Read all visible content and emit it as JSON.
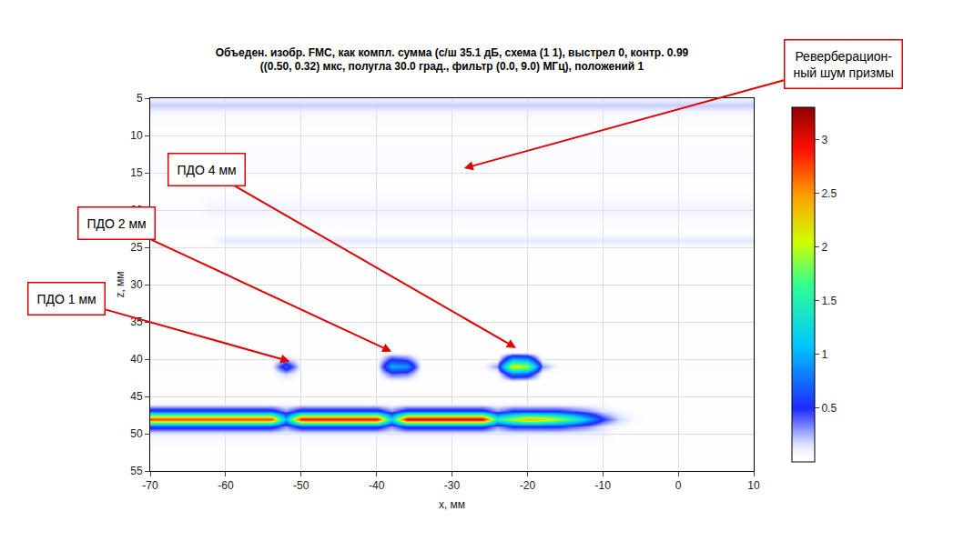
{
  "chart_data": {
    "type": "heatmap",
    "title": "Объеден. изобр. FMC, как компл. сумма (с/ш 35.1 дБ, схема (1 1), выстрел 0, контр. 0.99\n((0.50, 0.32) мкс, полугла 30.0 град., фильтр (0.0, 9.0) МГц), положений 1",
    "x_label": "x, мм",
    "y_label": "z, мм",
    "xlim": [
      -70,
      10
    ],
    "xticks": [
      -70,
      -60,
      -50,
      -40,
      -30,
      -20,
      -10,
      0,
      10
    ],
    "ylim": [
      55,
      5
    ],
    "yticks": [
      5,
      10,
      15,
      20,
      25,
      30,
      35,
      40,
      45,
      50,
      55
    ],
    "grid": true,
    "colorbar_range": [
      0,
      3.3
    ],
    "colorbar_ticks": [
      0.5,
      1,
      1.5,
      2,
      2.5,
      3
    ],
    "x": [
      -70,
      -68,
      -66,
      -64,
      -62,
      -60,
      -58,
      -56,
      -54,
      -52,
      -50,
      -48,
      -46,
      -44,
      -42,
      -40,
      -38,
      -36,
      -34,
      -32,
      -30,
      -28,
      -26,
      -24,
      -22,
      -20,
      -18,
      -16,
      -14,
      -12,
      -10,
      -8,
      -6,
      -4,
      -2,
      0,
      2,
      4,
      6,
      8,
      10
    ],
    "y": [
      5,
      6,
      7,
      9,
      12,
      14,
      17,
      20,
      21,
      23,
      24,
      25,
      28,
      32,
      36,
      39,
      40,
      41,
      42,
      43,
      45,
      46,
      47,
      48,
      49,
      50,
      52,
      55
    ],
    "cells": [
      [
        0.1,
        0.1,
        0.1,
        0.1,
        0.1,
        0.1,
        0.1,
        0.1,
        0.1,
        0.1,
        0.1,
        0.1,
        0.1,
        0.1,
        0.1,
        0.1,
        0.1,
        0.1,
        0.1,
        0.1,
        0.1,
        0.1,
        0.1,
        0.1,
        0.1,
        0.1,
        0.1,
        0.1,
        0.1,
        0.1,
        0.1,
        0.1,
        0.1,
        0.1,
        0.1,
        0.1,
        0.1,
        0.1,
        0.1,
        0.1,
        0.1
      ],
      [
        0.2,
        0.2,
        0.2,
        0.2,
        0.2,
        0.2,
        0.2,
        0.2,
        0.2,
        0.2,
        0.2,
        0.2,
        0.2,
        0.2,
        0.2,
        0.2,
        0.2,
        0.2,
        0.2,
        0.2,
        0.2,
        0.2,
        0.2,
        0.2,
        0.2,
        0.2,
        0.2,
        0.2,
        0.2,
        0.2,
        0.2,
        0.2,
        0.2,
        0.2,
        0.2,
        0.2,
        0.2,
        0.2,
        0.2,
        0.2,
        0.2
      ],
      [
        0.08,
        0.08,
        0.08,
        0.08,
        0.08,
        0.08,
        0.08,
        0.08,
        0.08,
        0.08,
        0.08,
        0.08,
        0.08,
        0.08,
        0.08,
        0.08,
        0.08,
        0.08,
        0.08,
        0.08,
        0.08,
        0.08,
        0.08,
        0.08,
        0.08,
        0.08,
        0.08,
        0.08,
        0.08,
        0.08,
        0.08,
        0.08,
        0.08,
        0.08,
        0.08,
        0.08,
        0.08,
        0.08,
        0.08,
        0.08,
        0.08
      ],
      [
        0.03,
        0.03,
        0.03,
        0.03,
        0.03,
        0.03,
        0.03,
        0.03,
        0.03,
        0.03,
        0.03,
        0.03,
        0.03,
        0.03,
        0.03,
        0.03,
        0.03,
        0.03,
        0.03,
        0.03,
        0.03,
        0.03,
        0.03,
        0.03,
        0.03,
        0.03,
        0.03,
        0.03,
        0.03,
        0.03,
        0.03,
        0.03,
        0.03,
        0.03,
        0.03,
        0.03,
        0.03,
        0.03,
        0.03,
        0.03,
        0.03
      ],
      [
        0.05,
        0.05,
        0.05,
        0.05,
        0.05,
        0.05,
        0.05,
        0.05,
        0.05,
        0.05,
        0.05,
        0.05,
        0.05,
        0.05,
        0.05,
        0.05,
        0.05,
        0.05,
        0.05,
        0.05,
        0.05,
        0.05,
        0.05,
        0.05,
        0.05,
        0.05,
        0.05,
        0.05,
        0.05,
        0.05,
        0.05,
        0.05,
        0.05,
        0.05,
        0.05,
        0.05,
        0.05,
        0.05,
        0.05,
        0.05,
        0.05
      ],
      [
        0.06,
        0.06,
        0.06,
        0.06,
        0.06,
        0.06,
        0.06,
        0.06,
        0.06,
        0.06,
        0.06,
        0.06,
        0.06,
        0.06,
        0.06,
        0.06,
        0.06,
        0.06,
        0.06,
        0.06,
        0.06,
        0.06,
        0.06,
        0.06,
        0.06,
        0.06,
        0.06,
        0.06,
        0.06,
        0.06,
        0.06,
        0.06,
        0.06,
        0.06,
        0.06,
        0.06,
        0.06,
        0.06,
        0.06,
        0.06,
        0.06
      ],
      [
        0.03,
        0.03,
        0.03,
        0.03,
        0.03,
        0.03,
        0.03,
        0.03,
        0.03,
        0.03,
        0.03,
        0.03,
        0.03,
        0.03,
        0.03,
        0.03,
        0.03,
        0.03,
        0.03,
        0.03,
        0.03,
        0.03,
        0.03,
        0.03,
        0.03,
        0.03,
        0.03,
        0.03,
        0.03,
        0.03,
        0.03,
        0.03,
        0.03,
        0.03,
        0.03,
        0.03,
        0.03,
        0.03,
        0.03,
        0.03,
        0.03
      ],
      [
        0.04,
        0.04,
        0.04,
        0.04,
        0.1,
        0.1,
        0.1,
        0.1,
        0.1,
        0.1,
        0.1,
        0.1,
        0.1,
        0.1,
        0.1,
        0.1,
        0.1,
        0.1,
        0.1,
        0.1,
        0.1,
        0.1,
        0.1,
        0.1,
        0.1,
        0.1,
        0.1,
        0.1,
        0.1,
        0.1,
        0.1,
        0.1,
        0.1,
        0.1,
        0.1,
        0.1,
        0.1,
        0.1,
        0.1,
        0.1,
        0.1
      ],
      [
        0.07,
        0.07,
        0.07,
        0.07,
        0.07,
        0.07,
        0.07,
        0.07,
        0.07,
        0.07,
        0.07,
        0.07,
        0.07,
        0.07,
        0.07,
        0.07,
        0.07,
        0.07,
        0.07,
        0.07,
        0.07,
        0.07,
        0.07,
        0.07,
        0.07,
        0.07,
        0.07,
        0.07,
        0.07,
        0.07,
        0.07,
        0.07,
        0.07,
        0.07,
        0.07,
        0.07,
        0.07,
        0.07,
        0.07,
        0.07,
        0.07
      ],
      [
        0.03,
        0.03,
        0.03,
        0.03,
        0.03,
        0.03,
        0.03,
        0.03,
        0.03,
        0.03,
        0.03,
        0.03,
        0.03,
        0.03,
        0.03,
        0.03,
        0.03,
        0.03,
        0.03,
        0.03,
        0.03,
        0.03,
        0.03,
        0.03,
        0.03,
        0.03,
        0.03,
        0.03,
        0.03,
        0.03,
        0.03,
        0.03,
        0.03,
        0.03,
        0.03,
        0.03,
        0.03,
        0.03,
        0.03,
        0.03,
        0.03
      ],
      [
        0.04,
        0.04,
        0.04,
        0.04,
        0.04,
        0.14,
        0.14,
        0.14,
        0.14,
        0.14,
        0.14,
        0.14,
        0.14,
        0.14,
        0.14,
        0.14,
        0.14,
        0.14,
        0.14,
        0.14,
        0.14,
        0.14,
        0.14,
        0.14,
        0.14,
        0.14,
        0.14,
        0.14,
        0.14,
        0.14,
        0.14,
        0.14,
        0.14,
        0.14,
        0.14,
        0.14,
        0.14,
        0.14,
        0.14,
        0.14,
        0.14
      ],
      [
        0.05,
        0.05,
        0.05,
        0.05,
        0.05,
        0.05,
        0.05,
        0.05,
        0.05,
        0.05,
        0.05,
        0.05,
        0.05,
        0.05,
        0.05,
        0.05,
        0.05,
        0.05,
        0.05,
        0.05,
        0.05,
        0.05,
        0.05,
        0.05,
        0.05,
        0.05,
        0.05,
        0.05,
        0.05,
        0.05,
        0.05,
        0.05,
        0.05,
        0.05,
        0.05,
        0.05,
        0.05,
        0.05,
        0.05,
        0.05,
        0.05
      ],
      [
        0.02,
        0.02,
        0.02,
        0.02,
        0.02,
        0.02,
        0.02,
        0.02,
        0.02,
        0.02,
        0.02,
        0.02,
        0.02,
        0.02,
        0.02,
        0.02,
        0.02,
        0.02,
        0.02,
        0.02,
        0.02,
        0.02,
        0.02,
        0.02,
        0.02,
        0.02,
        0.02,
        0.02,
        0.02,
        0.02,
        0.02,
        0.02,
        0.02,
        0.02,
        0.02,
        0.02,
        0.02,
        0.02,
        0.02,
        0.02,
        0.02
      ],
      [
        0.02,
        0.02,
        0.02,
        0.02,
        0.02,
        0.02,
        0.02,
        0.02,
        0.02,
        0.02,
        0.02,
        0.02,
        0.02,
        0.02,
        0.02,
        0.02,
        0.02,
        0.02,
        0.02,
        0.02,
        0.02,
        0.02,
        0.02,
        0.02,
        0.02,
        0.02,
        0.02,
        0.02,
        0.02,
        0.02,
        0.02,
        0.02,
        0.02,
        0.02,
        0.02,
        0.02,
        0.02,
        0.02,
        0.02,
        0.02,
        0.02
      ],
      [
        0.02,
        0.02,
        0.02,
        0.02,
        0.02,
        0.02,
        0.02,
        0.02,
        0.02,
        0.02,
        0.02,
        0.02,
        0.02,
        0.02,
        0.02,
        0.02,
        0.02,
        0.02,
        0.02,
        0.02,
        0.02,
        0.02,
        0.02,
        0.02,
        0.02,
        0.02,
        0.02,
        0.02,
        0.02,
        0.02,
        0.02,
        0.02,
        0.02,
        0.02,
        0.02,
        0.02,
        0.02,
        0.02,
        0.02,
        0.02,
        0.02
      ],
      [
        0.02,
        0.02,
        0.02,
        0.02,
        0.02,
        0.02,
        0.02,
        0.02,
        0.02,
        0.02,
        0.02,
        0.02,
        0.02,
        0.02,
        0.02,
        0.02,
        0.02,
        0.02,
        0.02,
        0.02,
        0.02,
        0.02,
        0.02,
        0.02,
        0.02,
        0.02,
        0.02,
        0.02,
        0.02,
        0.02,
        0.02,
        0.02,
        0.02,
        0.02,
        0.02,
        0.02,
        0.02,
        0.02,
        0.02,
        0.02,
        0.02
      ],
      [
        0.03,
        0.03,
        0.03,
        0.03,
        0.03,
        0.03,
        0.03,
        0.03,
        0.03,
        0.2,
        0.03,
        0.03,
        0.03,
        0.03,
        0.03,
        0.03,
        0.5,
        0.4,
        0.03,
        0.03,
        0.03,
        0.03,
        0.03,
        0.03,
        1.0,
        0.9,
        0.03,
        0.03,
        0.03,
        0.03,
        0.03,
        0.03,
        0.03,
        0.03,
        0.03,
        0.03,
        0.03,
        0.03,
        0.03,
        0.03,
        0.03
      ],
      [
        0.06,
        0.06,
        0.06,
        0.06,
        0.06,
        0.06,
        0.06,
        0.06,
        0.06,
        0.7,
        0.06,
        0.06,
        0.06,
        0.06,
        0.06,
        0.06,
        1.0,
        0.9,
        0.06,
        0.06,
        0.06,
        0.06,
        0.06,
        0.3,
        2.2,
        2.0,
        0.3,
        0.06,
        0.06,
        0.06,
        0.06,
        0.06,
        0.06,
        0.06,
        0.06,
        0.06,
        0.06,
        0.06,
        0.06,
        0.06,
        0.06
      ],
      [
        0.03,
        0.03,
        0.03,
        0.03,
        0.03,
        0.03,
        0.03,
        0.03,
        0.03,
        0.2,
        0.03,
        0.03,
        0.03,
        0.03,
        0.03,
        0.03,
        0.4,
        0.35,
        0.03,
        0.03,
        0.03,
        0.03,
        0.03,
        0.03,
        0.8,
        0.7,
        0.03,
        0.03,
        0.03,
        0.03,
        0.03,
        0.03,
        0.03,
        0.03,
        0.03,
        0.03,
        0.03,
        0.03,
        0.03,
        0.03,
        0.03
      ],
      [
        0.03,
        0.03,
        0.03,
        0.03,
        0.03,
        0.03,
        0.03,
        0.03,
        0.03,
        0.03,
        0.03,
        0.03,
        0.03,
        0.03,
        0.03,
        0.03,
        0.03,
        0.03,
        0.03,
        0.03,
        0.03,
        0.03,
        0.03,
        0.03,
        0.03,
        0.03,
        0.03,
        0.03,
        0.03,
        0.03,
        0.03,
        0.03,
        0.03,
        0.03,
        0.03,
        0.03,
        0.03,
        0.03,
        0.03,
        0.03,
        0.03
      ],
      [
        0.03,
        0.03,
        0.03,
        0.03,
        0.03,
        0.03,
        0.03,
        0.03,
        0.03,
        0.03,
        0.03,
        0.03,
        0.03,
        0.03,
        0.03,
        0.03,
        0.03,
        0.03,
        0.03,
        0.03,
        0.03,
        0.03,
        0.03,
        0.03,
        0.03,
        0.03,
        0.03,
        0.03,
        0.03,
        0.03,
        0.03,
        0.03,
        0.03,
        0.03,
        0.03,
        0.03,
        0.03,
        0.03,
        0.03,
        0.03,
        0.03
      ],
      [
        0.06,
        0.06,
        0.06,
        0.06,
        0.06,
        0.06,
        0.06,
        0.06,
        0.06,
        0.06,
        0.06,
        0.06,
        0.06,
        0.06,
        0.06,
        0.06,
        0.06,
        0.06,
        0.06,
        0.06,
        0.06,
        0.06,
        0.06,
        0.06,
        0.06,
        0.06,
        0.06,
        0.06,
        0.06,
        0.06,
        0.06,
        0.02,
        0.02,
        0.02,
        0.02,
        0.02,
        0.02,
        0.02,
        0.02,
        0.02,
        0.02
      ],
      [
        0.6,
        0.6,
        0.6,
        0.6,
        0.6,
        0.6,
        0.6,
        0.6,
        0.6,
        0.3,
        0.6,
        0.6,
        0.6,
        0.6,
        0.6,
        0.6,
        0.3,
        0.6,
        0.6,
        0.6,
        0.6,
        0.6,
        0.6,
        0.3,
        0.5,
        0.5,
        0.5,
        0.5,
        0.4,
        0.3,
        0.15,
        0.08,
        0.04,
        0.02,
        0.02,
        0.02,
        0.02,
        0.02,
        0.02,
        0.02,
        0.02
      ],
      [
        2.8,
        2.8,
        2.8,
        2.8,
        2.8,
        2.8,
        2.8,
        2.8,
        2.8,
        1.0,
        3.0,
        3.0,
        3.0,
        3.0,
        3.0,
        3.0,
        1.2,
        3.1,
        3.1,
        3.1,
        3.1,
        3.1,
        3.1,
        1.5,
        2.0,
        2.4,
        2.3,
        2.0,
        1.6,
        1.0,
        0.5,
        0.2,
        0.08,
        0.03,
        0.03,
        0.03,
        0.03,
        0.03,
        0.03,
        0.03,
        0.03
      ],
      [
        0.6,
        0.6,
        0.6,
        0.6,
        0.6,
        0.6,
        0.6,
        0.6,
        0.6,
        0.3,
        0.6,
        0.6,
        0.6,
        0.6,
        0.6,
        0.6,
        0.3,
        0.6,
        0.6,
        0.6,
        0.6,
        0.6,
        0.6,
        0.3,
        0.5,
        0.5,
        0.5,
        0.5,
        0.4,
        0.3,
        0.15,
        0.08,
        0.04,
        0.02,
        0.02,
        0.02,
        0.02,
        0.02,
        0.02,
        0.02,
        0.02
      ],
      [
        0.1,
        0.1,
        0.1,
        0.1,
        0.1,
        0.1,
        0.1,
        0.1,
        0.1,
        0.1,
        0.1,
        0.1,
        0.1,
        0.1,
        0.1,
        0.1,
        0.1,
        0.1,
        0.1,
        0.1,
        0.1,
        0.1,
        0.1,
        0.1,
        0.1,
        0.1,
        0.1,
        0.1,
        0.1,
        0.1,
        0.1,
        0.02,
        0.02,
        0.02,
        0.02,
        0.02,
        0.02,
        0.02,
        0.02,
        0.02,
        0.02
      ],
      [
        0.03,
        0.03,
        0.03,
        0.03,
        0.03,
        0.03,
        0.03,
        0.03,
        0.03,
        0.03,
        0.03,
        0.03,
        0.03,
        0.03,
        0.03,
        0.03,
        0.03,
        0.03,
        0.03,
        0.03,
        0.03,
        0.03,
        0.03,
        0.03,
        0.03,
        0.03,
        0.03,
        0.03,
        0.03,
        0.03,
        0.03,
        0.03,
        0.03,
        0.03,
        0.03,
        0.03,
        0.03,
        0.03,
        0.03,
        0.03,
        0.03
      ],
      [
        0.02,
        0.02,
        0.02,
        0.02,
        0.02,
        0.02,
        0.02,
        0.02,
        0.02,
        0.02,
        0.02,
        0.02,
        0.02,
        0.02,
        0.02,
        0.02,
        0.02,
        0.02,
        0.02,
        0.02,
        0.02,
        0.02,
        0.02,
        0.02,
        0.02,
        0.02,
        0.02,
        0.02,
        0.02,
        0.02,
        0.02,
        0.02,
        0.02,
        0.02,
        0.02,
        0.02,
        0.02,
        0.02,
        0.02,
        0.02,
        0.02
      ]
    ],
    "annotations": [
      {
        "text": "Реверберацион-\nный шум призмы",
        "x": -28.4,
        "y": 14.4
      },
      {
        "text": "ПДО 4 мм",
        "x": -21.5,
        "y": 38.5
      },
      {
        "text": "ПДО 2 мм",
        "x": -38,
        "y": 39
      },
      {
        "text": "ПДО 1 мм",
        "x": -51.5,
        "y": 40.3
      }
    ]
  }
}
